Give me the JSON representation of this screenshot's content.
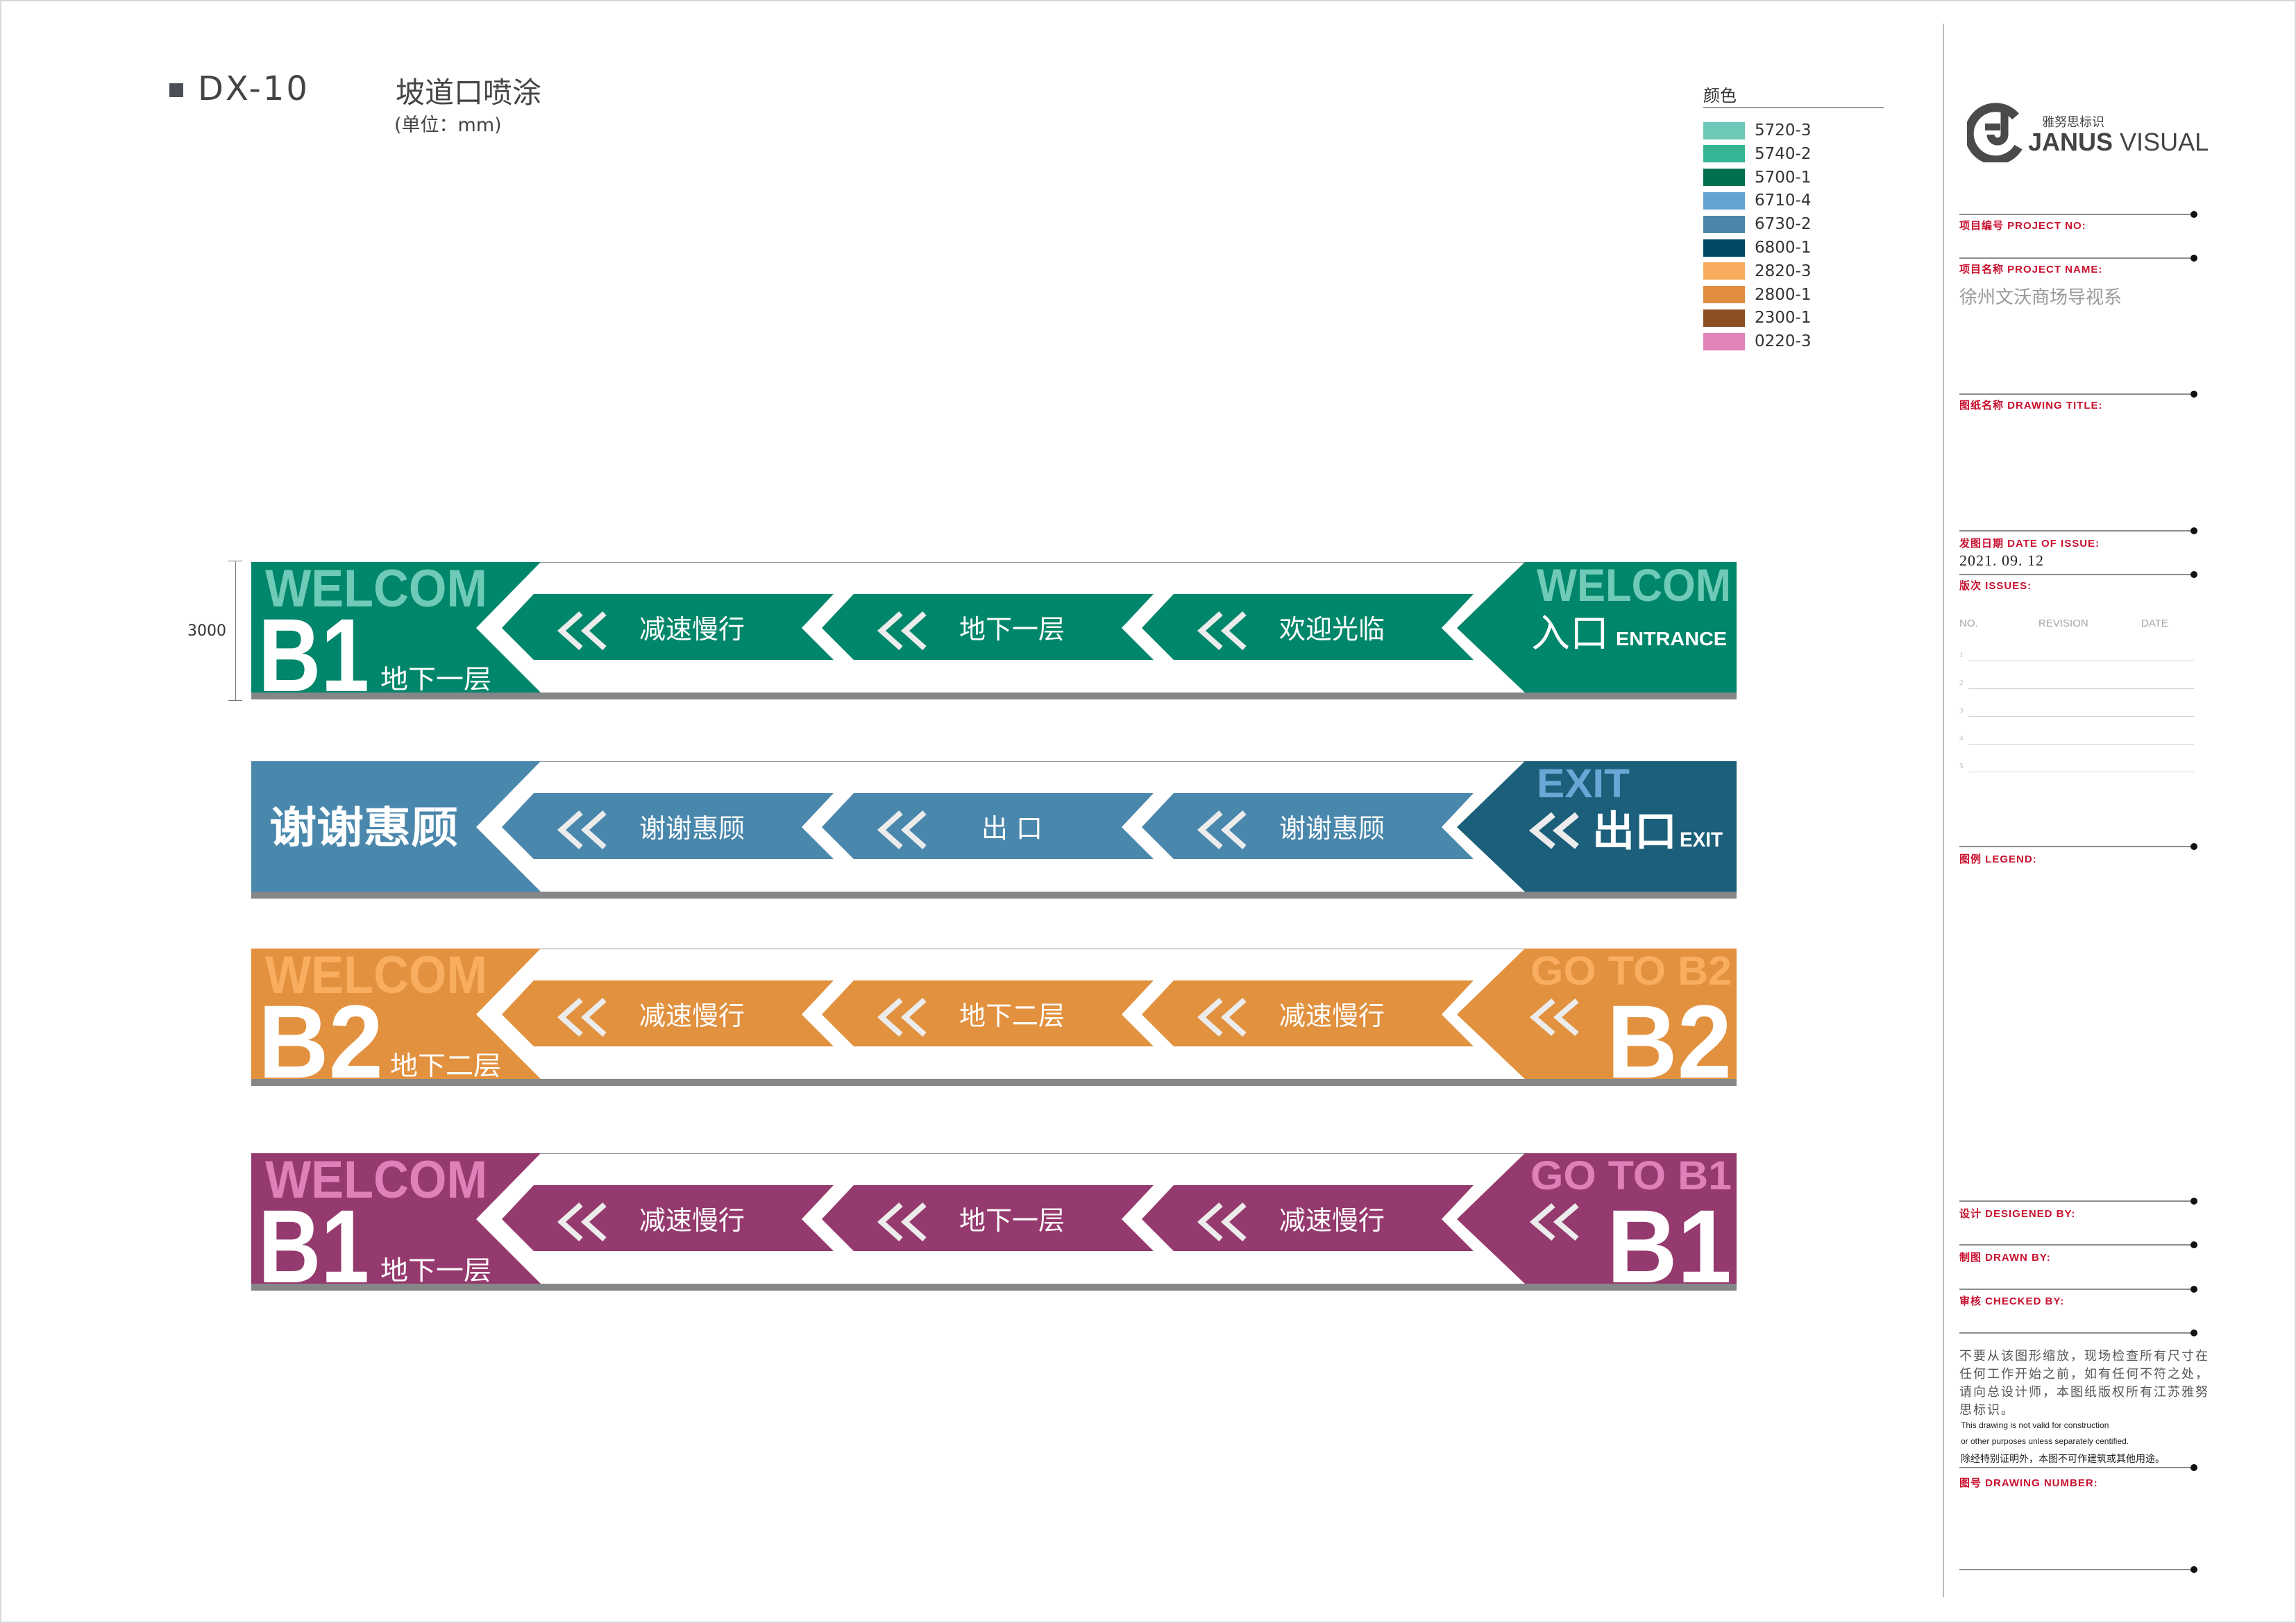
{
  "header": {
    "code": "DX-10",
    "title": "坡道口喷涂",
    "unit": "(单位：mm)"
  },
  "dimension": {
    "height_label": "3000"
  },
  "color_legend": {
    "title": "颜色",
    "items": [
      {
        "code": "5720-3",
        "color": "#6ec8b8"
      },
      {
        "code": "5740-2",
        "color": "#35b595"
      },
      {
        "code": "5700-1",
        "color": "#00704f"
      },
      {
        "code": "6710-4",
        "color": "#62a3d3"
      },
      {
        "code": "6730-2",
        "color": "#4c87ab"
      },
      {
        "code": "6800-1",
        "color": "#004a63"
      },
      {
        "code": "2820-3",
        "color": "#f9ac5e"
      },
      {
        "code": "2800-1",
        "color": "#e08d40"
      },
      {
        "code": "2300-1",
        "color": "#8d4e23"
      },
      {
        "code": "0220-3",
        "color": "#e083b8"
      }
    ]
  },
  "banners": [
    {
      "colors": {
        "left": "#00866a",
        "segment": "#00866a",
        "right": "#00866a",
        "accent": "#6fcab8"
      },
      "left": {
        "type": "floor",
        "welcome": "WELCOM",
        "floor": "B1",
        "floor_cn": "地下一层"
      },
      "segments": [
        "减速慢行",
        "地下一层",
        "欢迎光临"
      ],
      "right": {
        "type": "entrance",
        "top": "WELCOM",
        "main_cn": "入口",
        "sub_en": "ENTRANCE"
      }
    },
    {
      "colors": {
        "left": "#4a87ac",
        "segment": "#4a87ac",
        "right": "#1b5f7a",
        "accent": "#6aa7d6"
      },
      "left": {
        "type": "thanks",
        "text": "谢谢惠顾"
      },
      "segments": [
        "谢谢惠顾",
        "出 口",
        "谢谢惠顾"
      ],
      "right": {
        "type": "exit",
        "top": "EXIT",
        "main_cn": "出口",
        "sub_en": "EXIT"
      }
    },
    {
      "colors": {
        "left": "#e2913f",
        "segment": "#e2913f",
        "right": "#e2913f",
        "accent": "#f8ad5f"
      },
      "left": {
        "type": "floor",
        "welcome": "WELCOM",
        "floor": "B2",
        "floor_cn": "地下二层"
      },
      "segments": [
        "减速慢行",
        "地下二层",
        "减速慢行"
      ],
      "right": {
        "type": "goto",
        "top": "GO TO B2",
        "floor": "B2"
      }
    },
    {
      "colors": {
        "left": "#953a6e",
        "segment": "#953a6e",
        "right": "#953a6e",
        "accent": "#e080b8"
      },
      "left": {
        "type": "floor",
        "welcome": "WELCOM",
        "floor": "B1",
        "floor_cn": "地下一层"
      },
      "segments": [
        "减速慢行",
        "地下一层",
        "减速慢行"
      ],
      "right": {
        "type": "goto",
        "top": "GO TO B1",
        "floor": "B1"
      }
    }
  ],
  "title_block": {
    "logo": {
      "cn": "雅努思标识",
      "brand_bold": "JANUS",
      "brand_light": "VISUAL"
    },
    "project_no_label": "项目编号  PROJECT NO:",
    "project_name_label": "项目名称  PROJECT NAME:",
    "project_name": "徐州文沃商场导视系",
    "drawing_title_label": "图纸名称  DRAWING TITLE:",
    "date_label": "发图日期  DATE OF ISSUE:",
    "date": "2021. 09. 12",
    "issues_label": "版次  ISSUES:",
    "issue_columns": [
      "NO.",
      "REVISION",
      "DATE"
    ],
    "issue_rows": [
      "1",
      "2",
      "3",
      "4",
      "5"
    ],
    "legend_label": "图例  LEGEND:",
    "designed_label": "设计  DESIGENED BY:",
    "drawn_label": "制图  DRAWN BY:",
    "checked_label": "审核  CHECKED BY:",
    "disclaimer_cn": [
      "不要从该图形缩放，现场检查所有尺寸在",
      "任何工作开始之前，如有任何不符之处，",
      "请向总设计师，本图纸版权所有江苏雅努",
      "思标识。"
    ],
    "disclaimer_en": [
      "This drawing is not valid for construction",
      "or other purposes unless separately centified."
    ],
    "disclaimer_cn2": "除经特别证明外，本图不可作建筑或其他用途。",
    "drawing_number_label": "图号  DRAWING NUMBER:"
  }
}
